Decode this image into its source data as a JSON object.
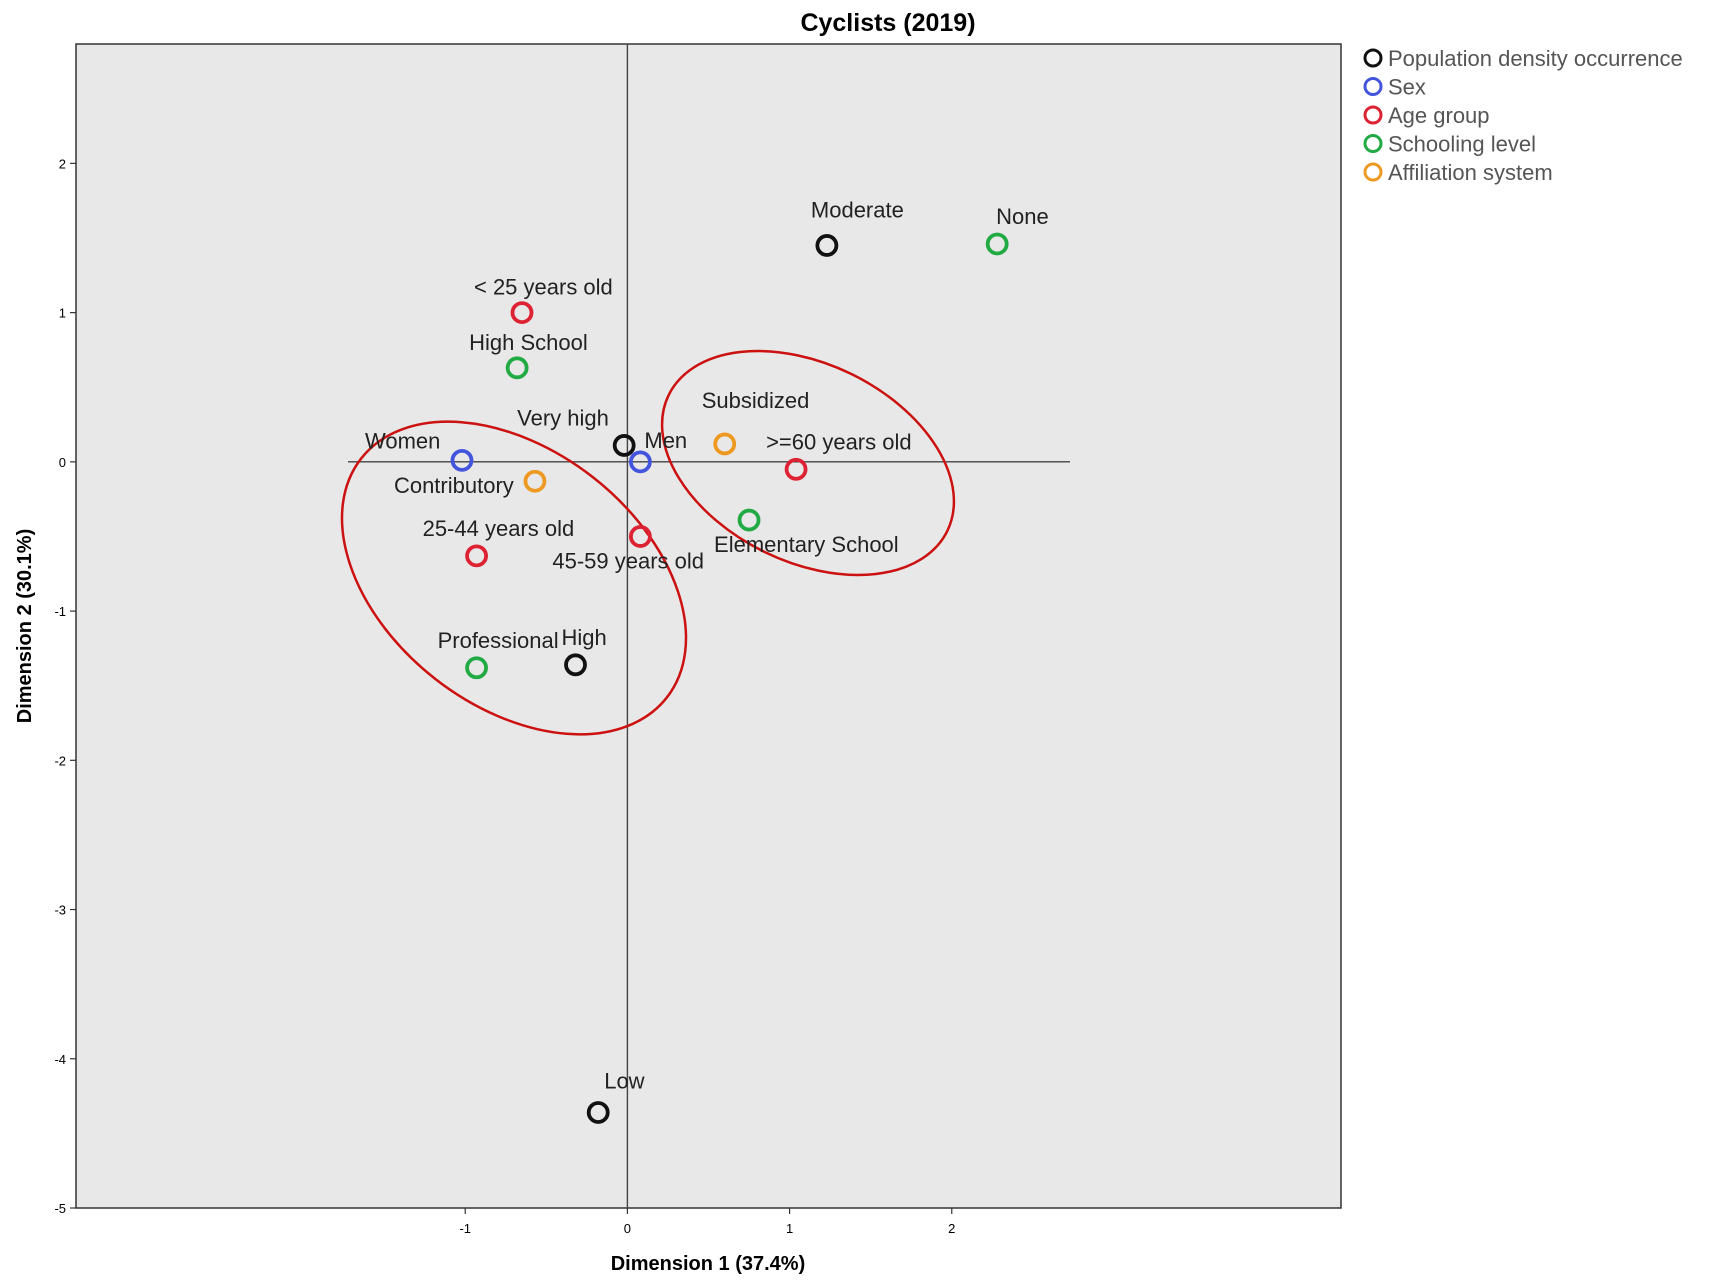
{
  "chart_data": {
    "type": "scatter",
    "title": "Cyclists (2019)",
    "xlabel": "Dimension 1 (37.4%)",
    "ylabel": "Dimension 2 (30.1%)",
    "xlim": [
      -3.4,
      4.4
    ],
    "ylim": [
      -5,
      2.8
    ],
    "xticks": [
      -1,
      0,
      1,
      2
    ],
    "yticks": [
      2,
      1,
      0,
      -1,
      -2,
      -3,
      -4,
      -5
    ],
    "grid": false,
    "legend_position": "right",
    "colors": {
      "plot_bg": "#e8e8e8",
      "ellipse": "#cc1111"
    },
    "series": [
      {
        "name": "Population density occurrence",
        "color": "#111111",
        "points": [
          {
            "label": "Moderate",
            "x": 1.23,
            "y": 1.45
          },
          {
            "label": "Very high",
            "x": -0.02,
            "y": 0.11
          },
          {
            "label": "High",
            "x": -0.32,
            "y": -1.36
          },
          {
            "label": "Low",
            "x": -0.18,
            "y": -4.36
          }
        ]
      },
      {
        "name": "Sex",
        "color": "#4455dd",
        "points": [
          {
            "label": "Women",
            "x": -1.02,
            "y": 0.01
          },
          {
            "label": "Men",
            "x": 0.08,
            "y": 0.0
          }
        ]
      },
      {
        "name": "Age group",
        "color": "#dd2233",
        "points": [
          {
            "label": "< 25 years old",
            "x": -0.65,
            "y": 1.0
          },
          {
            "label": ">=60 years old",
            "x": 1.04,
            "y": -0.05
          },
          {
            "label": "25-44 years old",
            "x": -0.93,
            "y": -0.63
          },
          {
            "label": "45-59 years old",
            "x": 0.08,
            "y": -0.5
          }
        ]
      },
      {
        "name": "Schooling level",
        "color": "#22aa44",
        "points": [
          {
            "label": "None",
            "x": 2.28,
            "y": 1.46
          },
          {
            "label": "High School",
            "x": -0.68,
            "y": 0.63
          },
          {
            "label": "Elementary School",
            "x": 0.75,
            "y": -0.39
          },
          {
            "label": "Professional",
            "x": -0.93,
            "y": -1.38
          }
        ]
      },
      {
        "name": "Affiliation system",
        "color": "#ee9922",
        "points": [
          {
            "label": "Subsidized",
            "x": 0.6,
            "y": 0.12
          },
          {
            "label": "Contributory",
            "x": -0.57,
            "y": -0.13
          }
        ]
      }
    ]
  }
}
